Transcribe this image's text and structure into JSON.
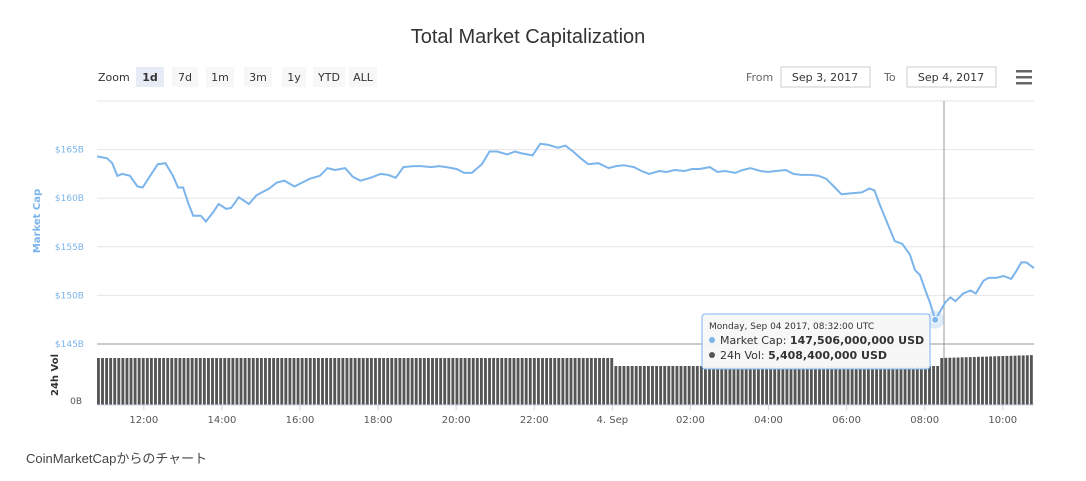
{
  "chart_data": {
    "type": "line",
    "title": "Total Market Capitalization",
    "ylabel": "Market Cap",
    "vol_label": "24h Vol",
    "ylim": [
      145,
      170
    ],
    "y_ticks": [
      "$165B",
      "$160B",
      "$155B",
      "$150B",
      "$145B"
    ],
    "vol_tick": "0B",
    "x_ticks": [
      "12:00",
      "14:00",
      "16:00",
      "18:00",
      "20:00",
      "22:00",
      "4. Sep",
      "02:00",
      "04:00",
      "06:00",
      "08:00",
      "10:00"
    ],
    "x_start_hour": 10.8,
    "x_end_hour": 34.8,
    "series": [
      {
        "name": "Market Cap",
        "color": "#7cb5ec",
        "points": [
          [
            10.8,
            164.3
          ],
          [
            11.2,
            164.1
          ],
          [
            11.4,
            163.6
          ],
          [
            11.6,
            162.3
          ],
          [
            11.8,
            162.5
          ],
          [
            12.1,
            162.3
          ],
          [
            12.4,
            161.2
          ],
          [
            12.6,
            161.1
          ],
          [
            12.9,
            162.3
          ],
          [
            13.2,
            163.5
          ],
          [
            13.5,
            163.6
          ],
          [
            13.8,
            162.3
          ],
          [
            14.0,
            161.1
          ],
          [
            14.2,
            161.1
          ],
          [
            14.4,
            159.5
          ],
          [
            14.6,
            158.2
          ],
          [
            14.9,
            158.2
          ],
          [
            15.1,
            157.6
          ],
          [
            15.4,
            158.6
          ],
          [
            15.6,
            159.4
          ],
          [
            15.9,
            158.9
          ],
          [
            16.1,
            159.0
          ],
          [
            16.4,
            160.1
          ],
          [
            16.8,
            159.4
          ],
          [
            17.1,
            160.3
          ],
          [
            17.6,
            161.0
          ],
          [
            17.9,
            161.6
          ],
          [
            18.2,
            161.8
          ],
          [
            18.6,
            161.2
          ],
          [
            18.9,
            161.6
          ],
          [
            19.2,
            162.0
          ],
          [
            19.6,
            162.3
          ],
          [
            19.9,
            163.1
          ],
          [
            20.2,
            162.9
          ],
          [
            20.6,
            163.1
          ],
          [
            20.9,
            162.2
          ],
          [
            21.2,
            161.8
          ],
          [
            21.6,
            162.1
          ],
          [
            22.0,
            162.5
          ],
          [
            22.3,
            162.4
          ],
          [
            22.6,
            162.1
          ],
          [
            22.9,
            163.2
          ],
          [
            23.3,
            163.3
          ],
          [
            23.6,
            163.3
          ],
          [
            24.0,
            163.2
          ],
          [
            24.3,
            163.3
          ],
          [
            24.6,
            163.2
          ],
          [
            25.0,
            163.0
          ],
          [
            25.3,
            162.6
          ],
          [
            25.6,
            162.6
          ],
          [
            26.0,
            163.5
          ],
          [
            26.3,
            164.8
          ],
          [
            26.6,
            164.8
          ],
          [
            27.0,
            164.5
          ],
          [
            27.3,
            164.8
          ],
          [
            27.6,
            164.6
          ],
          [
            28.0,
            164.4
          ],
          [
            28.3,
            165.6
          ],
          [
            28.6,
            165.5
          ],
          [
            29.0,
            165.2
          ],
          [
            29.3,
            165.4
          ],
          [
            29.6,
            164.8
          ],
          [
            29.9,
            164.1
          ],
          [
            30.2,
            163.5
          ],
          [
            30.6,
            163.6
          ],
          [
            31.0,
            163.1
          ],
          [
            31.3,
            163.3
          ],
          [
            31.6,
            163.4
          ],
          [
            32.0,
            163.2
          ],
          [
            32.3,
            162.8
          ],
          [
            32.6,
            162.5
          ],
          [
            33.0,
            162.8
          ],
          [
            33.3,
            162.7
          ],
          [
            33.6,
            162.9
          ],
          [
            34.0,
            162.8
          ],
          [
            34.3,
            163.0
          ],
          [
            34.6,
            163.0
          ],
          [
            35.0,
            163.2
          ],
          [
            35.3,
            162.7
          ],
          [
            35.6,
            162.8
          ],
          [
            36.0,
            162.6
          ],
          [
            36.3,
            162.9
          ],
          [
            36.6,
            163.1
          ],
          [
            37.0,
            162.8
          ],
          [
            37.3,
            162.7
          ],
          [
            37.6,
            162.8
          ],
          [
            38.0,
            162.9
          ],
          [
            38.3,
            162.5
          ],
          [
            38.6,
            162.4
          ],
          [
            39.0,
            162.4
          ],
          [
            39.3,
            162.3
          ],
          [
            39.6,
            162.0
          ],
          [
            39.9,
            161.2
          ],
          [
            40.2,
            160.4
          ],
          [
            40.6,
            160.5
          ],
          [
            41.0,
            160.6
          ],
          [
            41.3,
            161.0
          ],
          [
            41.5,
            160.8
          ],
          [
            41.7,
            159.4
          ],
          [
            42.0,
            157.5
          ],
          [
            42.3,
            155.6
          ],
          [
            42.6,
            155.3
          ],
          [
            42.9,
            154.2
          ],
          [
            43.1,
            152.6
          ],
          [
            43.3,
            152.1
          ],
          [
            43.5,
            150.6
          ],
          [
            43.7,
            149.2
          ],
          [
            43.9,
            147.5
          ],
          [
            44.1,
            148.4
          ],
          [
            44.3,
            149.3
          ],
          [
            44.5,
            149.8
          ],
          [
            44.7,
            149.4
          ],
          [
            45.0,
            150.2
          ],
          [
            45.3,
            150.5
          ],
          [
            45.5,
            150.2
          ],
          [
            45.8,
            151.5
          ],
          [
            46.0,
            151.8
          ],
          [
            46.3,
            151.8
          ],
          [
            46.6,
            152.0
          ],
          [
            46.9,
            151.7
          ],
          [
            47.1,
            152.5
          ],
          [
            47.3,
            153.4
          ],
          [
            47.5,
            153.4
          ],
          [
            47.8,
            152.8
          ]
        ]
      },
      {
        "name": "24h Vol",
        "color": "#555555",
        "bar_count": 230
      }
    ],
    "tooltip": {
      "header": "Monday, Sep 04 2017, 08:32:00 UTC",
      "rows": [
        {
          "label": "Market Cap: ",
          "value": "147,506,000,000 USD",
          "color": "#7cb5ec"
        },
        {
          "label": "24h Vol: ",
          "value": "5,408,400,000 USD",
          "color": "#555555"
        }
      ]
    }
  },
  "controls": {
    "zoom_label": "Zoom",
    "zoom_buttons": [
      "1d",
      "7d",
      "1m",
      "3m",
      "1y",
      "YTD",
      "ALL"
    ],
    "zoom_active": "1d",
    "from_label": "From",
    "from_value": "Sep 3, 2017",
    "to_label": "To",
    "to_value": "Sep 4, 2017",
    "menu_icon": "hamburger-menu-icon"
  },
  "caption": "CoinMarketCapからのチャート"
}
